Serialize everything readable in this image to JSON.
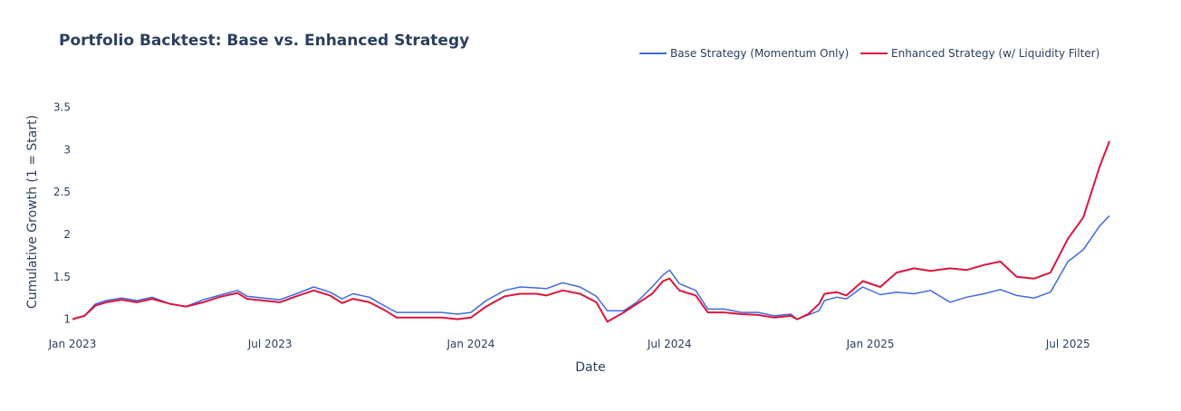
{
  "chart_data": {
    "type": "line",
    "title": "Portfolio Backtest: Base vs. Enhanced Strategy",
    "xlabel": "Date",
    "ylabel": "Cumulative Growth (1 = Start)",
    "xlim": [
      "2023-01-01",
      "2025-08-08"
    ],
    "ylim": [
      0.9,
      3.75
    ],
    "grid": false,
    "legend_position": "top-right",
    "x_ticks": [
      {
        "date": "2023-01-01",
        "label": "Jan 2023"
      },
      {
        "date": "2023-07-01",
        "label": "Jul 2023"
      },
      {
        "date": "2024-01-01",
        "label": "Jan 2024"
      },
      {
        "date": "2024-07-01",
        "label": "Jul 2024"
      },
      {
        "date": "2025-01-01",
        "label": "Jan 2025"
      },
      {
        "date": "2025-07-01",
        "label": "Jul 2025"
      }
    ],
    "y_ticks": [
      {
        "value": 1,
        "label": "1"
      },
      {
        "value": 1.5,
        "label": "1.5"
      },
      {
        "value": 2,
        "label": "2"
      },
      {
        "value": 2.5,
        "label": "2.5"
      },
      {
        "value": 3,
        "label": "3"
      },
      {
        "value": 3.5,
        "label": "3.5"
      }
    ],
    "series": [
      {
        "name": "Base Strategy (Momentum Only)",
        "color": "#4169e1",
        "points": [
          [
            "2023-01-01",
            1.0
          ],
          [
            "2023-01-12",
            1.04
          ],
          [
            "2023-01-22",
            1.18
          ],
          [
            "2023-02-01",
            1.22
          ],
          [
            "2023-02-15",
            1.25
          ],
          [
            "2023-03-01",
            1.22
          ],
          [
            "2023-03-15",
            1.26
          ],
          [
            "2023-04-01",
            1.18
          ],
          [
            "2023-04-15",
            1.15
          ],
          [
            "2023-05-01",
            1.23
          ],
          [
            "2023-05-15",
            1.28
          ],
          [
            "2023-06-01",
            1.34
          ],
          [
            "2023-06-10",
            1.27
          ],
          [
            "2023-06-25",
            1.25
          ],
          [
            "2023-07-10",
            1.23
          ],
          [
            "2023-07-25",
            1.3
          ],
          [
            "2023-08-10",
            1.38
          ],
          [
            "2023-08-25",
            1.32
          ],
          [
            "2023-09-05",
            1.24
          ],
          [
            "2023-09-15",
            1.3
          ],
          [
            "2023-09-30",
            1.26
          ],
          [
            "2023-10-15",
            1.15
          ],
          [
            "2023-10-25",
            1.08
          ],
          [
            "2023-11-10",
            1.08
          ],
          [
            "2023-11-25",
            1.08
          ],
          [
            "2023-12-05",
            1.08
          ],
          [
            "2023-12-20",
            1.06
          ],
          [
            "2024-01-01",
            1.08
          ],
          [
            "2024-01-15",
            1.22
          ],
          [
            "2024-02-01",
            1.34
          ],
          [
            "2024-02-15",
            1.38
          ],
          [
            "2024-03-01",
            1.37
          ],
          [
            "2024-03-10",
            1.36
          ],
          [
            "2024-03-25",
            1.43
          ],
          [
            "2024-04-10",
            1.38
          ],
          [
            "2024-04-25",
            1.27
          ],
          [
            "2024-05-05",
            1.1
          ],
          [
            "2024-05-20",
            1.1
          ],
          [
            "2024-06-01",
            1.2
          ],
          [
            "2024-06-15",
            1.38
          ],
          [
            "2024-06-25",
            1.52
          ],
          [
            "2024-07-01",
            1.58
          ],
          [
            "2024-07-10",
            1.42
          ],
          [
            "2024-07-25",
            1.34
          ],
          [
            "2024-08-05",
            1.12
          ],
          [
            "2024-08-20",
            1.12
          ],
          [
            "2024-09-05",
            1.08
          ],
          [
            "2024-09-20",
            1.08
          ],
          [
            "2024-10-05",
            1.04
          ],
          [
            "2024-10-20",
            1.06
          ],
          [
            "2024-10-26",
            1.0
          ],
          [
            "2024-11-05",
            1.05
          ],
          [
            "2024-11-15",
            1.1
          ],
          [
            "2024-11-20",
            1.22
          ],
          [
            "2024-12-01",
            1.26
          ],
          [
            "2024-12-10",
            1.24
          ],
          [
            "2024-12-25",
            1.38
          ],
          [
            "2025-01-10",
            1.29
          ],
          [
            "2025-01-25",
            1.32
          ],
          [
            "2025-02-10",
            1.3
          ],
          [
            "2025-02-25",
            1.34
          ],
          [
            "2025-03-15",
            1.2
          ],
          [
            "2025-03-30",
            1.26
          ],
          [
            "2025-04-15",
            1.3
          ],
          [
            "2025-04-30",
            1.35
          ],
          [
            "2025-05-15",
            1.28
          ],
          [
            "2025-05-31",
            1.25
          ],
          [
            "2025-06-15",
            1.32
          ],
          [
            "2025-07-01",
            1.68
          ],
          [
            "2025-07-15",
            1.82
          ],
          [
            "2025-07-30",
            2.1
          ],
          [
            "2025-08-08",
            2.22
          ]
        ]
      },
      {
        "name": "Enhanced Strategy (w/ Liquidity Filter)",
        "color": "#dc143c",
        "points": [
          [
            "2023-01-01",
            1.0
          ],
          [
            "2023-01-12",
            1.04
          ],
          [
            "2023-01-22",
            1.16
          ],
          [
            "2023-02-01",
            1.2
          ],
          [
            "2023-02-15",
            1.23
          ],
          [
            "2023-03-01",
            1.2
          ],
          [
            "2023-03-15",
            1.24
          ],
          [
            "2023-04-01",
            1.18
          ],
          [
            "2023-04-15",
            1.15
          ],
          [
            "2023-05-01",
            1.2
          ],
          [
            "2023-05-15",
            1.26
          ],
          [
            "2023-06-01",
            1.31
          ],
          [
            "2023-06-10",
            1.24
          ],
          [
            "2023-06-25",
            1.22
          ],
          [
            "2023-07-10",
            1.2
          ],
          [
            "2023-07-25",
            1.27
          ],
          [
            "2023-08-10",
            1.34
          ],
          [
            "2023-08-25",
            1.28
          ],
          [
            "2023-09-05",
            1.19
          ],
          [
            "2023-09-15",
            1.24
          ],
          [
            "2023-09-30",
            1.2
          ],
          [
            "2023-10-15",
            1.1
          ],
          [
            "2023-10-25",
            1.02
          ],
          [
            "2023-11-10",
            1.02
          ],
          [
            "2023-11-25",
            1.02
          ],
          [
            "2023-12-05",
            1.02
          ],
          [
            "2023-12-20",
            1.0
          ],
          [
            "2024-01-01",
            1.02
          ],
          [
            "2024-01-15",
            1.15
          ],
          [
            "2024-02-01",
            1.27
          ],
          [
            "2024-02-15",
            1.3
          ],
          [
            "2024-03-01",
            1.3
          ],
          [
            "2024-03-10",
            1.28
          ],
          [
            "2024-03-25",
            1.34
          ],
          [
            "2024-04-10",
            1.3
          ],
          [
            "2024-04-25",
            1.2
          ],
          [
            "2024-05-05",
            0.97
          ],
          [
            "2024-05-20",
            1.08
          ],
          [
            "2024-06-01",
            1.18
          ],
          [
            "2024-06-15",
            1.3
          ],
          [
            "2024-06-25",
            1.45
          ],
          [
            "2024-07-01",
            1.48
          ],
          [
            "2024-07-10",
            1.34
          ],
          [
            "2024-07-25",
            1.28
          ],
          [
            "2024-08-05",
            1.08
          ],
          [
            "2024-08-20",
            1.08
          ],
          [
            "2024-09-05",
            1.06
          ],
          [
            "2024-09-20",
            1.05
          ],
          [
            "2024-10-05",
            1.02
          ],
          [
            "2024-10-20",
            1.04
          ],
          [
            "2024-10-26",
            1.0
          ],
          [
            "2024-11-05",
            1.06
          ],
          [
            "2024-11-15",
            1.18
          ],
          [
            "2024-11-20",
            1.3
          ],
          [
            "2024-12-01",
            1.32
          ],
          [
            "2024-12-10",
            1.28
          ],
          [
            "2024-12-25",
            1.45
          ],
          [
            "2025-01-10",
            1.38
          ],
          [
            "2025-01-25",
            1.55
          ],
          [
            "2025-02-10",
            1.6
          ],
          [
            "2025-02-25",
            1.57
          ],
          [
            "2025-03-15",
            1.6
          ],
          [
            "2025-03-30",
            1.58
          ],
          [
            "2025-04-15",
            1.64
          ],
          [
            "2025-04-30",
            1.68
          ],
          [
            "2025-05-15",
            1.5
          ],
          [
            "2025-05-31",
            1.48
          ],
          [
            "2025-06-15",
            1.55
          ],
          [
            "2025-07-01",
            1.95
          ],
          [
            "2025-07-15",
            2.2
          ],
          [
            "2025-07-30",
            2.8
          ],
          [
            "2025-08-08",
            3.1
          ]
        ]
      }
    ]
  }
}
